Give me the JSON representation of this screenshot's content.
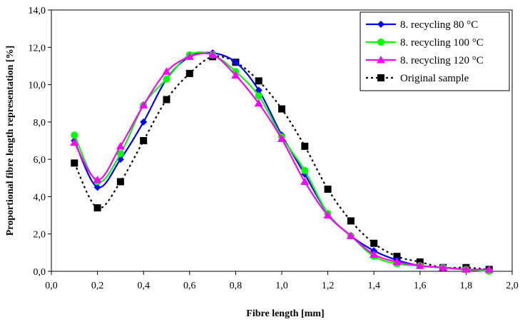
{
  "chart_data": {
    "type": "line",
    "xlabel": "Fibre length   [mm]",
    "ylabel": "Proportional fibre length representation [%]",
    "xlim": [
      0.0,
      2.0
    ],
    "ylim": [
      0.0,
      14.0
    ],
    "x_tick_labels": [
      "0,0",
      "0,2",
      "0,4",
      "0,6",
      "0,8",
      "1,0",
      "1,2",
      "1,4",
      "1,6",
      "1,8",
      "2,0"
    ],
    "y_tick_labels": [
      "0,0",
      "2,0",
      "4,0",
      "6,0",
      "8,0",
      "10,0",
      "12,0",
      "14,0"
    ],
    "grid": false,
    "legend_position": "top-right",
    "x": [
      0.1,
      0.2,
      0.3,
      0.4,
      0.5,
      0.6,
      0.7,
      0.8,
      0.9,
      1.0,
      1.1,
      1.2,
      1.3,
      1.4,
      1.5,
      1.6,
      1.7,
      1.8,
      1.9
    ],
    "series": [
      {
        "name": "8. recycling 80 °C",
        "color": "#0000ff",
        "marker": "diamond",
        "line": "solid",
        "values": [
          7.0,
          4.5,
          6.0,
          8.0,
          10.3,
          11.5,
          11.7,
          11.2,
          9.7,
          7.3,
          5.2,
          3.1,
          1.9,
          1.1,
          0.6,
          0.3,
          0.2,
          0.1,
          0.05
        ]
      },
      {
        "name": "8. recycling 100 °C",
        "color": "#00ff00",
        "marker": "circle",
        "line": "solid",
        "values": [
          7.3,
          4.8,
          6.3,
          8.9,
          10.3,
          11.6,
          11.6,
          10.7,
          9.4,
          7.2,
          5.4,
          3.1,
          1.9,
          0.8,
          0.4,
          0.3,
          0.2,
          0.1,
          0.0
        ]
      },
      {
        "name": "8. recycling 120 °C",
        "color": "#ff00ff",
        "marker": "triangle",
        "line": "solid",
        "values": [
          6.9,
          4.9,
          6.7,
          8.9,
          10.7,
          11.5,
          11.6,
          10.5,
          9.0,
          7.1,
          4.8,
          3.0,
          1.9,
          0.9,
          0.5,
          0.3,
          0.2,
          0.1,
          0.1
        ]
      },
      {
        "name": "Original sample",
        "color": "#000000",
        "marker": "square",
        "line": "dashed",
        "values": [
          5.8,
          3.4,
          4.8,
          7.0,
          9.2,
          10.6,
          11.5,
          11.2,
          10.2,
          8.7,
          6.7,
          4.4,
          2.7,
          1.5,
          0.8,
          0.5,
          0.2,
          0.2,
          0.1
        ]
      }
    ]
  }
}
